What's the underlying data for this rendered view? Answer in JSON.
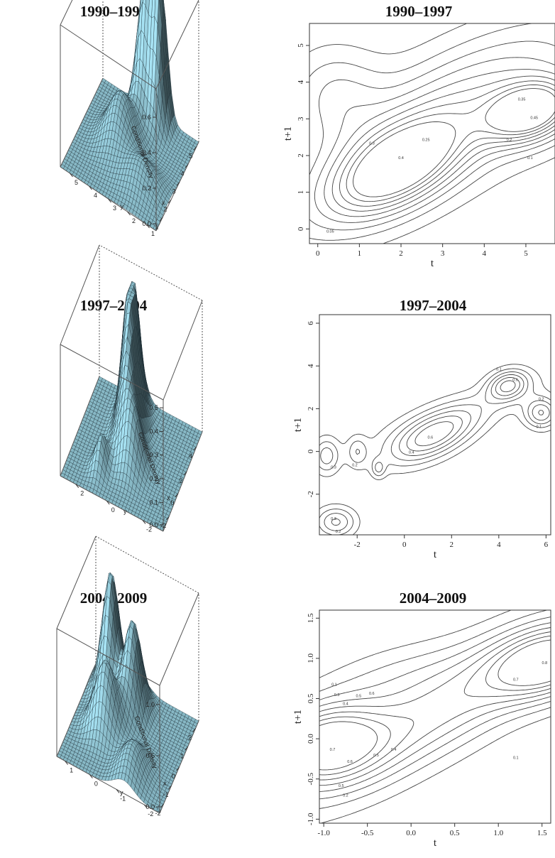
{
  "chart_data": [
    {
      "type": "surface",
      "title": "1990–1997",
      "xlabel": "x",
      "ylabel": "y",
      "zlabel": "Conditional Density",
      "x_ticks": [
        "1",
        "2",
        "3",
        "4",
        "5"
      ],
      "y_ticks": [
        "1",
        "2",
        "3",
        "4",
        "5"
      ],
      "z_ticks": [
        "0.0",
        "0.2",
        "0.4",
        "0.6"
      ],
      "color": "#9fd8e8",
      "peaks": [
        {
          "x": 1.7,
          "y": 5.1,
          "height": 0.74
        },
        {
          "x": 2.4,
          "y": 5.0,
          "height": 0.72
        },
        {
          "x": 2.9,
          "y": 3.0,
          "height": 0.35
        },
        {
          "x": 1.4,
          "y": 1.6,
          "height": 0.25
        }
      ]
    },
    {
      "type": "contour",
      "title": "1990–1997",
      "xlabel": "t",
      "ylabel": "t+1",
      "xlim": [
        -0.2,
        5.7
      ],
      "ylim": [
        -0.4,
        5.6
      ],
      "x_ticks": [
        0,
        1,
        2,
        3,
        4,
        5
      ],
      "y_ticks": [
        0,
        1,
        2,
        3,
        4,
        5
      ],
      "level_labels": [
        "0.05",
        "0.1",
        "0.15",
        "0.2",
        "0.25",
        "0.3",
        "0.35",
        "0.4",
        "0.45"
      ]
    },
    {
      "type": "surface",
      "title": "1997–2004",
      "xlabel": "x",
      "ylabel": "y",
      "zlabel": "Conditional Density",
      "x_ticks": [
        "-2",
        "0",
        "2",
        "4"
      ],
      "y_ticks": [
        "-2",
        "0",
        "2"
      ],
      "z_ticks": [
        "0.0",
        "0.1",
        "0.2",
        "0.3",
        "0.4",
        "0.5"
      ],
      "color": "#9fd8e8",
      "peaks": [
        {
          "x": 0.8,
          "y": 1.9,
          "height": 0.55
        },
        {
          "x": 0.2,
          "y": 1.0,
          "height": 0.45
        },
        {
          "x": -0.5,
          "y": -0.6,
          "height": 0.3
        }
      ]
    },
    {
      "type": "contour",
      "title": "1997–2004",
      "xlabel": "t",
      "ylabel": "t+1",
      "xlim": [
        -3.6,
        6.2
      ],
      "ylim": [
        -3.9,
        6.4
      ],
      "x_ticks": [
        -2,
        0,
        2,
        4,
        6
      ],
      "y_ticks": [
        -2,
        0,
        2,
        4,
        6
      ],
      "level_labels": [
        "0.1",
        "0.2",
        "0.3",
        "0.4",
        "0.5",
        "0.6"
      ]
    },
    {
      "type": "surface",
      "title": "2004–2009",
      "xlabel": "x",
      "ylabel": "y",
      "zlabel": "Conditional Density",
      "x_ticks": [
        "-2",
        "-1",
        "0",
        "1",
        "2"
      ],
      "y_ticks": [
        "-2",
        "-1",
        "0",
        "1"
      ],
      "z_ticks": [
        "0.0",
        "0.5",
        "1.0"
      ],
      "color": "#9fd8e8",
      "peaks": [
        {
          "x": 1.5,
          "y": 1.6,
          "height": 1.0
        },
        {
          "x": 0.5,
          "y": 1.0,
          "height": 0.8
        },
        {
          "x": 1.0,
          "y": 0.0,
          "height": 0.6
        }
      ]
    },
    {
      "type": "contour",
      "title": "2004–2009",
      "xlabel": "t",
      "ylabel": "t+1",
      "xlim": [
        -1.05,
        1.6
      ],
      "ylim": [
        -1.05,
        1.6
      ],
      "x_ticks": [
        "-1.0",
        "-0.5",
        "0.0",
        "0.5",
        "1.0",
        "1.5"
      ],
      "y_ticks": [
        "-1.0",
        "-0.5",
        "0.0",
        "0.5",
        "1.0",
        "1.5"
      ],
      "level_labels": [
        "0.1",
        "0.2",
        "0.3",
        "0.4",
        "0.5",
        "0.6",
        "0.7",
        "0.8"
      ]
    }
  ]
}
